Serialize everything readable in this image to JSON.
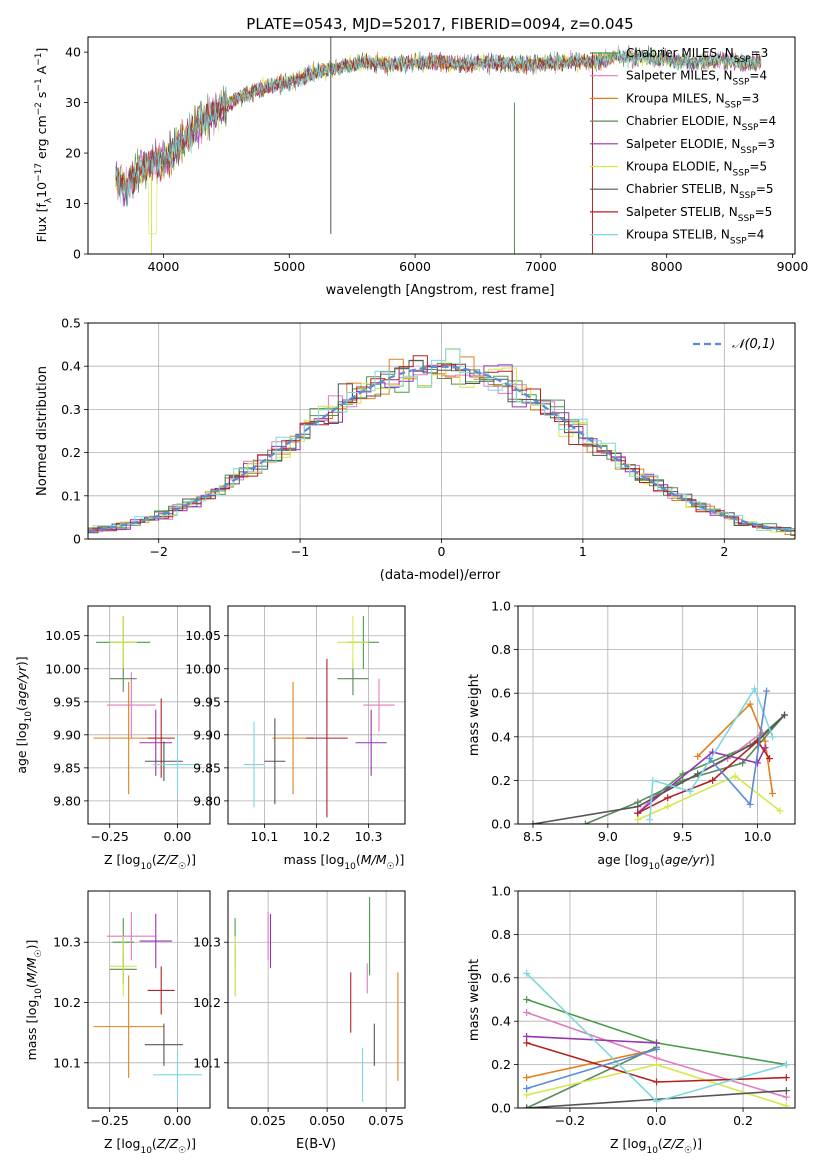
{
  "title": "PLATE=0543, MJD=52017, FIBERID=0094, z=0.045",
  "colors": [
    "#4b9a4b",
    "#e07cbf",
    "#e0801a",
    "#5a8a5a",
    "#9932b0",
    "#d6e84a",
    "#555555",
    "#b22222",
    "#7fd7e0"
  ],
  "chart_data": [
    {
      "type": "line",
      "id": "spectrum",
      "title": "PLATE=0543, MJD=52017, FIBERID=0094, z=0.045",
      "xlabel": "wavelength [Angstrom, rest frame]",
      "ylabel": "Flux [f_λ 10^-17 erg cm^-2 s^-1 A^-1]",
      "xlim": [
        3400,
        9020
      ],
      "ylim": [
        0,
        43
      ],
      "xticks": [
        4000,
        5000,
        6000,
        7000,
        8000,
        9000
      ],
      "yticks": [
        0,
        10,
        20,
        30,
        40
      ],
      "legend": "top-right",
      "series": [
        {
          "name": "Chabrier MILES, N_SSP=3",
          "color": "#4b9a4b"
        },
        {
          "name": "Salpeter MILES, N_SSP=4",
          "color": "#e07cbf"
        },
        {
          "name": "Kroupa MILES, N_SSP=3",
          "color": "#e0801a"
        },
        {
          "name": "Chabrier ELODIE, N_SSP=4",
          "color": "#5a8a5a"
        },
        {
          "name": "Salpeter ELODIE, N_SSP=3",
          "color": "#9932b0"
        },
        {
          "name": "Kroupa ELODIE, N_SSP=5",
          "color": "#d6e84a"
        },
        {
          "name": "Chabrier STELIB, N_SSP=5",
          "color": "#555555"
        },
        {
          "name": "Salpeter STELIB, N_SSP=5",
          "color": "#b22222"
        },
        {
          "name": "Kroupa STELIB, N_SSP=4",
          "color": "#7fd7e0"
        }
      ],
      "continuum_x": [
        3600,
        3700,
        3800,
        3900,
        4000,
        4200,
        4400,
        4600,
        4800,
        5000,
        5200,
        5400,
        5600,
        5800,
        6000,
        6200,
        6400,
        6600,
        6800,
        7000,
        7200,
        7400,
        7600,
        7800,
        8000,
        8200,
        8400,
        8600
      ],
      "continuum_y": [
        16,
        13,
        17,
        18,
        18,
        24,
        28,
        31,
        33,
        34,
        36,
        37,
        38,
        37.5,
        38,
        38,
        37.5,
        38,
        37.5,
        37.8,
        38,
        38,
        39,
        39,
        38.5,
        38,
        38.5,
        38
      ]
    },
    {
      "type": "bar",
      "id": "residual-histogram",
      "xlabel": "(data-model)/error",
      "ylabel": "Normed distribution",
      "xlim": [
        -2.5,
        2.5
      ],
      "ylim": [
        0,
        0.5
      ],
      "xticks": [
        -2,
        -1,
        0,
        1,
        2
      ],
      "yticks": [
        0.0,
        0.1,
        0.2,
        0.3,
        0.4,
        0.5
      ],
      "legend": "top-right",
      "reference_curve": {
        "name": "𝒩(0,1)",
        "color": "#5b8ad6",
        "style": "dashed"
      },
      "bin_width": 0.1,
      "grid": true
    },
    {
      "type": "scatter",
      "id": "age-vs-Z",
      "xlabel": "Z [log10(Z/Z☉)]",
      "ylabel": "age  [log10(age/yr)]",
      "xlim": [
        -0.33,
        0.12
      ],
      "ylim": [
        9.765,
        10.095
      ],
      "xticks": [
        -0.25,
        0.0
      ],
      "yticks": [
        9.8,
        9.85,
        9.9,
        9.95,
        10.0,
        10.05
      ],
      "points": [
        {
          "x": -0.2,
          "y": 10.04,
          "xerr": 0.1,
          "yerr": 0.04
        },
        {
          "x": -0.17,
          "y": 9.945,
          "xerr": 0.09,
          "yerr": 0.05
        },
        {
          "x": -0.18,
          "y": 9.895,
          "xerr": 0.13,
          "yerr": 0.085
        },
        {
          "x": -0.2,
          "y": 9.985,
          "xerr": 0.05,
          "yerr": 0.02
        },
        {
          "x": -0.08,
          "y": 9.888,
          "xerr": 0.06,
          "yerr": 0.05
        },
        {
          "x": -0.2,
          "y": 10.04,
          "xerr": 0.05,
          "yerr": 0.04
        },
        {
          "x": -0.05,
          "y": 9.86,
          "xerr": 0.07,
          "yerr": 0.03
        },
        {
          "x": -0.06,
          "y": 9.895,
          "xerr": 0.05,
          "yerr": 0.06
        },
        {
          "x": 0.0,
          "y": 9.855,
          "xerr": 0.09,
          "yerr": 0.045
        }
      ]
    },
    {
      "type": "scatter",
      "id": "age-vs-mass",
      "xlabel": "mass [log10(M/M☉)]",
      "xlim": [
        10.03,
        10.37
      ],
      "ylim": [
        9.765,
        10.095
      ],
      "xticks": [
        10.1,
        10.2,
        10.3
      ],
      "yticks": [
        9.8,
        9.85,
        9.9,
        9.95,
        10.0,
        10.05
      ],
      "points": [
        {
          "x": 10.29,
          "y": 10.04,
          "xerr": 0.03,
          "yerr": 0.04
        },
        {
          "x": 10.32,
          "y": 9.945,
          "xerr": 0.03,
          "yerr": 0.04
        },
        {
          "x": 10.155,
          "y": 9.895,
          "xerr": 0.04,
          "yerr": 0.085
        },
        {
          "x": 10.27,
          "y": 9.985,
          "xerr": 0.03,
          "yerr": 0.025
        },
        {
          "x": 10.305,
          "y": 9.888,
          "xerr": 0.03,
          "yerr": 0.05
        },
        {
          "x": 10.27,
          "y": 10.04,
          "xerr": 0.03,
          "yerr": 0.04
        },
        {
          "x": 10.12,
          "y": 9.86,
          "xerr": 0.02,
          "yerr": 0.065
        },
        {
          "x": 10.22,
          "y": 9.895,
          "xerr": 0.04,
          "yerr": 0.12
        },
        {
          "x": 10.08,
          "y": 9.855,
          "xerr": 0.02,
          "yerr": 0.065
        }
      ]
    },
    {
      "type": "line",
      "id": "mass-weight-vs-age",
      "xlabel": "age  [log10(age/yr)]",
      "ylabel": "mass weight",
      "xlim": [
        8.4,
        10.25
      ],
      "ylim": [
        0,
        1.0
      ],
      "xticks": [
        8.5,
        9.0,
        9.5,
        10.0
      ],
      "yticks": [
        0.0,
        0.2,
        0.4,
        0.6,
        0.8,
        1.0
      ],
      "series": [
        {
          "x": [
            9.3,
            9.5,
            9.95,
            10.18
          ],
          "y": [
            0.12,
            0.23,
            0.36,
            0.5
          ]
        },
        {
          "x": [
            9.2,
            9.3,
            9.8,
            10.03
          ],
          "y": [
            0.05,
            0.12,
            0.3,
            0.42
          ]
        },
        {
          "x": [
            9.6,
            9.95,
            10.05,
            10.1
          ],
          "y": [
            0.31,
            0.55,
            0.38,
            0.14
          ]
        },
        {
          "x": [
            8.85,
            9.2,
            9.5,
            9.9,
            10.18
          ],
          "y": [
            0.0,
            0.1,
            0.2,
            0.28,
            0.5
          ]
        },
        {
          "x": [
            9.2,
            9.7,
            10.0,
            10.05
          ],
          "y": [
            0.05,
            0.33,
            0.28,
            0.35
          ]
        },
        {
          "x": [
            9.2,
            9.4,
            9.85,
            10.15
          ],
          "y": [
            0.02,
            0.08,
            0.22,
            0.06
          ]
        },
        {
          "x": [
            8.5,
            9.2,
            9.6,
            10.0,
            10.18
          ],
          "y": [
            0.0,
            0.08,
            0.23,
            0.38,
            0.5
          ]
        },
        {
          "x": [
            9.2,
            9.4,
            9.7,
            10.0,
            10.08
          ],
          "y": [
            0.05,
            0.12,
            0.2,
            0.38,
            0.3
          ]
        },
        {
          "x": [
            9.28,
            9.3,
            9.55,
            9.98,
            10.1
          ],
          "y": [
            0.02,
            0.2,
            0.15,
            0.62,
            0.4
          ]
        }
      ],
      "extra_series": [
        {
          "color_index": 0,
          "x": [
            9.68,
            9.95,
            10.06
          ],
          "y": [
            0.3,
            0.09,
            0.61
          ]
        }
      ]
    },
    {
      "type": "scatter",
      "id": "mass-vs-Z",
      "xlabel": "Z [log10(Z/Z☉)]",
      "ylabel": "mass [log10(M/M☉)]",
      "xlim": [
        -0.33,
        0.12
      ],
      "ylim": [
        10.025,
        10.385
      ],
      "xticks": [
        -0.25,
        0.0
      ],
      "yticks": [
        10.1,
        10.2,
        10.3
      ],
      "points": [
        {
          "x": -0.2,
          "y": 10.3,
          "xerr": 0.04,
          "yerr": 0.04
        },
        {
          "x": -0.17,
          "y": 10.31,
          "xerr": 0.09,
          "yerr": 0.04
        },
        {
          "x": -0.18,
          "y": 10.16,
          "xerr": 0.13,
          "yerr": 0.085
        },
        {
          "x": -0.2,
          "y": 10.255,
          "xerr": 0.05,
          "yerr": 0.025
        },
        {
          "x": -0.08,
          "y": 10.302,
          "xerr": 0.06,
          "yerr": 0.045
        },
        {
          "x": -0.2,
          "y": 10.26,
          "xerr": 0.05,
          "yerr": 0.05
        },
        {
          "x": -0.05,
          "y": 10.13,
          "xerr": 0.07,
          "yerr": 0.035
        },
        {
          "x": -0.06,
          "y": 10.22,
          "xerr": 0.05,
          "yerr": 0.04
        },
        {
          "x": 0.0,
          "y": 10.08,
          "xerr": 0.09,
          "yerr": 0.04
        }
      ]
    },
    {
      "type": "scatter",
      "id": "mass-vs-EBV",
      "xlabel": "E(B-V)",
      "xlim": [
        0.008,
        0.083
      ],
      "ylim": [
        10.025,
        10.385
      ],
      "xticks": [
        0.025,
        0.05,
        0.075
      ],
      "yticks": [
        10.1,
        10.2,
        10.3
      ],
      "points": [
        {
          "x": 0.011,
          "y": 10.3,
          "yerr": 0.04
        },
        {
          "x": 0.025,
          "y": 10.31,
          "yerr": 0.04
        },
        {
          "x": 0.08,
          "y": 10.16,
          "yerr": 0.09
        },
        {
          "x": 0.011,
          "y": 10.25,
          "yerr": 0.04
        },
        {
          "x": 0.026,
          "y": 10.302,
          "yerr": 0.045
        },
        {
          "x": 0.011,
          "y": 10.26,
          "yerr": 0.05
        },
        {
          "x": 0.07,
          "y": 10.13,
          "yerr": 0.035
        },
        {
          "x": 0.06,
          "y": 10.2,
          "yerr": 0.05
        },
        {
          "x": 0.065,
          "y": 10.08,
          "yerr": 0.045
        },
        {
          "x": 0.068,
          "y": 10.31,
          "yerr": 0.065
        },
        {
          "x": 0.067,
          "y": 10.24,
          "yerr": 0.025
        }
      ]
    },
    {
      "type": "line",
      "id": "mass-weight-vs-Z",
      "xlabel": "Z [log10(Z/Z☉)]",
      "ylabel": "mass weight",
      "xlim": [
        -0.32,
        0.32
      ],
      "ylim": [
        0,
        1.0
      ],
      "xticks": [
        -0.2,
        0.0,
        0.2
      ],
      "yticks": [
        0.0,
        0.2,
        0.4,
        0.6,
        0.8,
        1.0
      ],
      "series": [
        {
          "x": [
            -0.3,
            0.0,
            0.3
          ],
          "y": [
            0.5,
            0.3,
            0.2
          ]
        },
        {
          "x": [
            -0.3,
            0.0,
            0.3
          ],
          "y": [
            0.44,
            0.23,
            0.05
          ]
        },
        {
          "x": [
            -0.3,
            0.0
          ],
          "y": [
            0.14,
            0.27
          ]
        },
        {
          "x": [
            -0.3,
            0.0
          ],
          "y": [
            0.0,
            0.28
          ]
        },
        {
          "x": [
            -0.3,
            0.0
          ],
          "y": [
            0.33,
            0.3
          ]
        },
        {
          "x": [
            -0.3,
            0.0,
            0.3
          ],
          "y": [
            0.06,
            0.2,
            0.01
          ]
        },
        {
          "x": [
            -0.3,
            0.3
          ],
          "y": [
            0.0,
            0.08
          ]
        },
        {
          "x": [
            -0.3,
            0.0,
            0.3
          ],
          "y": [
            0.3,
            0.12,
            0.14
          ]
        },
        {
          "x": [
            -0.3,
            0.0,
            0.3
          ],
          "y": [
            0.62,
            0.03,
            0.2
          ]
        }
      ],
      "extra_series": [
        {
          "color_index": 0,
          "x": [
            -0.3,
            0.0
          ],
          "y": [
            0.09,
            0.27
          ]
        }
      ]
    }
  ]
}
